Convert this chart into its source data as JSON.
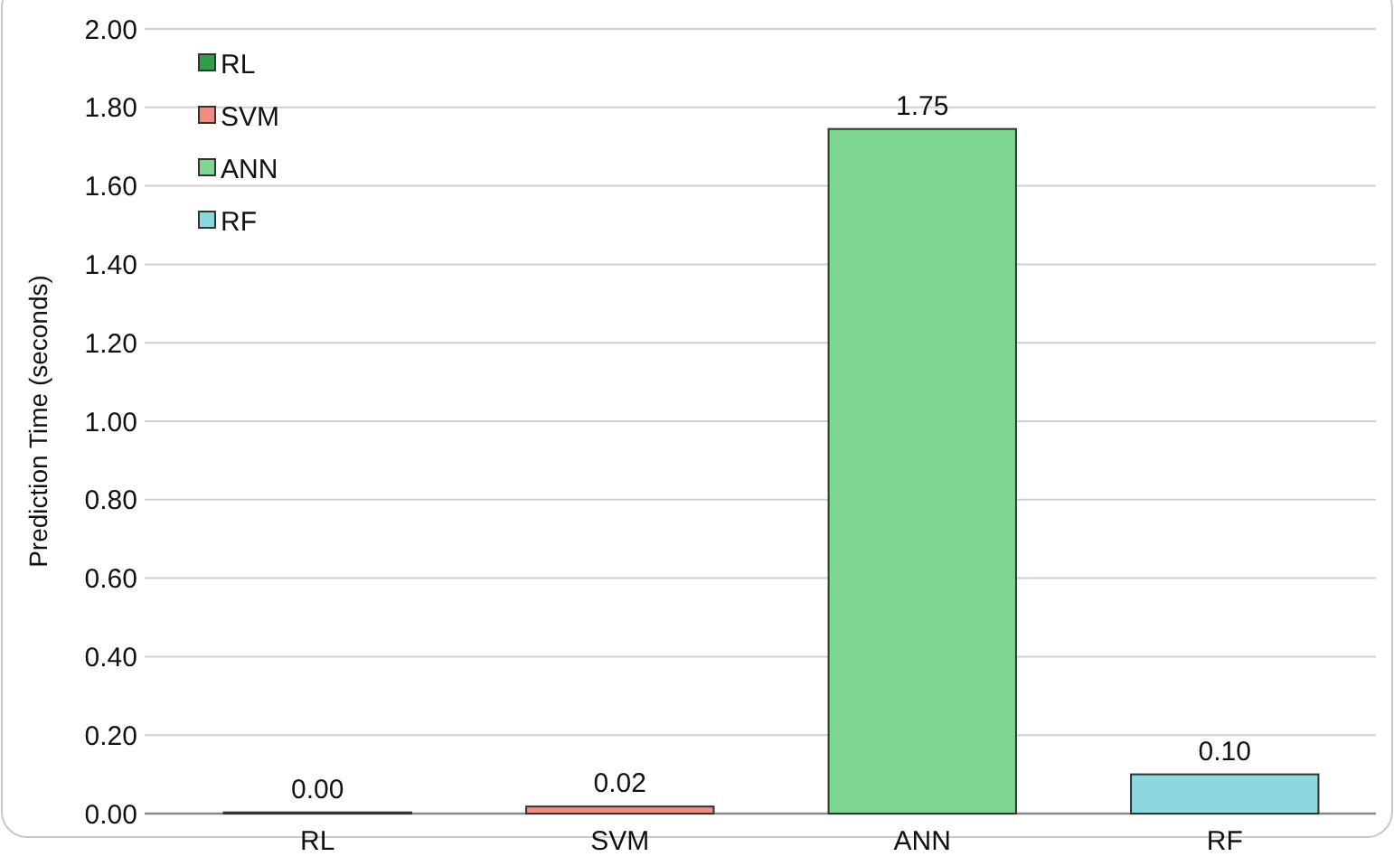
{
  "chart_data": {
    "type": "bar",
    "ylabel": "Prediction Time (seconds)",
    "categories": [
      "RL",
      "SVM",
      "ANN",
      "RF"
    ],
    "series": [
      {
        "name": "RL",
        "color": "#2e9e4a",
        "values": [
          0.003,
          null,
          null,
          null
        ],
        "value_labels": [
          "0.00",
          null,
          null,
          null
        ]
      },
      {
        "name": "SVM",
        "color": "#f08c80",
        "values": [
          null,
          0.018,
          null,
          null
        ],
        "value_labels": [
          null,
          "0.02",
          null,
          null
        ]
      },
      {
        "name": "ANN",
        "color": "#7ed693",
        "values": [
          null,
          null,
          1.745,
          null
        ],
        "value_labels": [
          null,
          null,
          "1.75",
          null
        ]
      },
      {
        "name": "RF",
        "color": "#8dd7de",
        "values": [
          null,
          null,
          null,
          0.1
        ],
        "value_labels": [
          null,
          null,
          null,
          "0.10"
        ]
      }
    ],
    "ylim": [
      0,
      2
    ],
    "yticks": [
      {
        "value": 0,
        "label": "0.00"
      },
      {
        "value": 0.2,
        "label": "0.20"
      },
      {
        "value": 0.4,
        "label": "0.40"
      },
      {
        "value": 0.6,
        "label": "0.60"
      },
      {
        "value": 0.8,
        "label": "0.80"
      },
      {
        "value": 1,
        "label": "1.00"
      },
      {
        "value": 1.2,
        "label": "1.20"
      },
      {
        "value": 1.4,
        "label": "1.40"
      },
      {
        "value": 1.6,
        "label": "1.60"
      },
      {
        "value": 1.8,
        "label": "1.80"
      },
      {
        "value": 2,
        "label": "2.00"
      }
    ],
    "grid": "y",
    "legend": "top left"
  }
}
